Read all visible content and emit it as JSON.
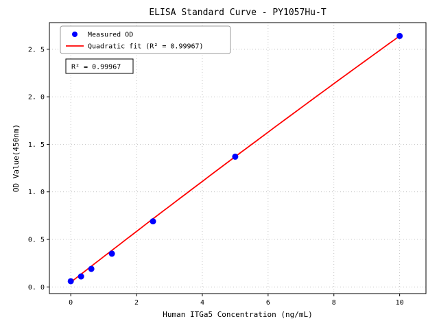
{
  "figure": {
    "background": "#ffffff"
  },
  "chart_data": {
    "type": "scatter",
    "title": "ELISA Standard Curve - PY1057Hu-T",
    "xlabel": "Human ITGa5 Concentration (ng/mL)",
    "ylabel": "OD Value(450nm)",
    "series": [
      {
        "name": "Measured OD",
        "x": [
          0,
          0.313,
          0.625,
          1.25,
          2.5,
          5,
          10
        ],
        "y": [
          0.06,
          0.11,
          0.19,
          0.35,
          0.69,
          1.37,
          2.64
        ]
      }
    ],
    "fit": {
      "label": "Quadratic fit (R² = 0.99967)",
      "a": -0.001,
      "b": 0.269,
      "c": 0.05,
      "x_start": 0,
      "x_end": 10
    },
    "annotation": "R² = 0.99967",
    "x_ticks": [
      0,
      2,
      4,
      6,
      8,
      10
    ],
    "x_tick_labels": [
      "0",
      "2",
      "4",
      "6",
      "8",
      "10"
    ],
    "y_ticks": [
      0,
      0.5,
      1.0,
      1.5,
      2.0,
      2.5
    ],
    "y_tick_labels": [
      "0. 0",
      "0. 5",
      "1. 0",
      "1. 5",
      "2. 0",
      "2. 5"
    ],
    "xlim": [
      -0.65,
      10.8
    ],
    "ylim": [
      -0.07,
      2.78
    ],
    "grid": true,
    "legend_position": "upper left",
    "colors": {
      "points": "#0000ff",
      "line": "#ff0000",
      "grid": "#b8b8b8",
      "frame": "#000000",
      "legend_border": "#999999",
      "annotation_border": "#000000"
    }
  }
}
